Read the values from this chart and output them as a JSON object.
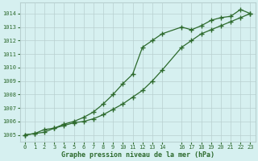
{
  "line1_x": [
    0,
    1,
    2,
    3,
    4,
    5,
    6,
    7,
    8,
    9,
    10,
    11,
    12,
    13,
    14,
    16,
    17,
    18,
    19,
    20,
    21,
    22,
    23
  ],
  "line1_y": [
    1005.0,
    1005.1,
    1005.4,
    1005.5,
    1005.8,
    1006.0,
    1006.3,
    1006.7,
    1007.3,
    1008.0,
    1008.8,
    1009.5,
    1011.5,
    1012.0,
    1012.5,
    1013.0,
    1012.8,
    1013.1,
    1013.5,
    1013.7,
    1013.8,
    1014.3,
    1014.0
  ],
  "line2_x": [
    0,
    1,
    2,
    3,
    4,
    5,
    6,
    7,
    8,
    9,
    10,
    11,
    12,
    13,
    14,
    16,
    17,
    18,
    19,
    20,
    21,
    22,
    23
  ],
  "line2_y": [
    1005.0,
    1005.1,
    1005.2,
    1005.5,
    1005.7,
    1005.9,
    1006.0,
    1006.2,
    1006.5,
    1006.9,
    1007.3,
    1007.8,
    1008.3,
    1009.0,
    1009.8,
    1011.5,
    1012.0,
    1012.5,
    1012.8,
    1013.1,
    1013.4,
    1013.7,
    1014.0
  ],
  "line_color": "#2d6a2d",
  "bg_color": "#d6f0f0",
  "grid_color": "#b8d0d0",
  "text_color": "#2d6a2d",
  "xlabel": "Graphe pression niveau de la mer (hPa)",
  "xlim": [
    -0.5,
    23.5
  ],
  "ylim": [
    1004.5,
    1014.8
  ],
  "yticks": [
    1005,
    1006,
    1007,
    1008,
    1009,
    1010,
    1011,
    1012,
    1013,
    1014
  ],
  "xticks": [
    0,
    1,
    2,
    3,
    4,
    5,
    6,
    7,
    8,
    9,
    10,
    11,
    12,
    13,
    14,
    16,
    17,
    18,
    19,
    20,
    21,
    22,
    23
  ],
  "marker": "+",
  "marker_size": 4,
  "linewidth": 0.9
}
